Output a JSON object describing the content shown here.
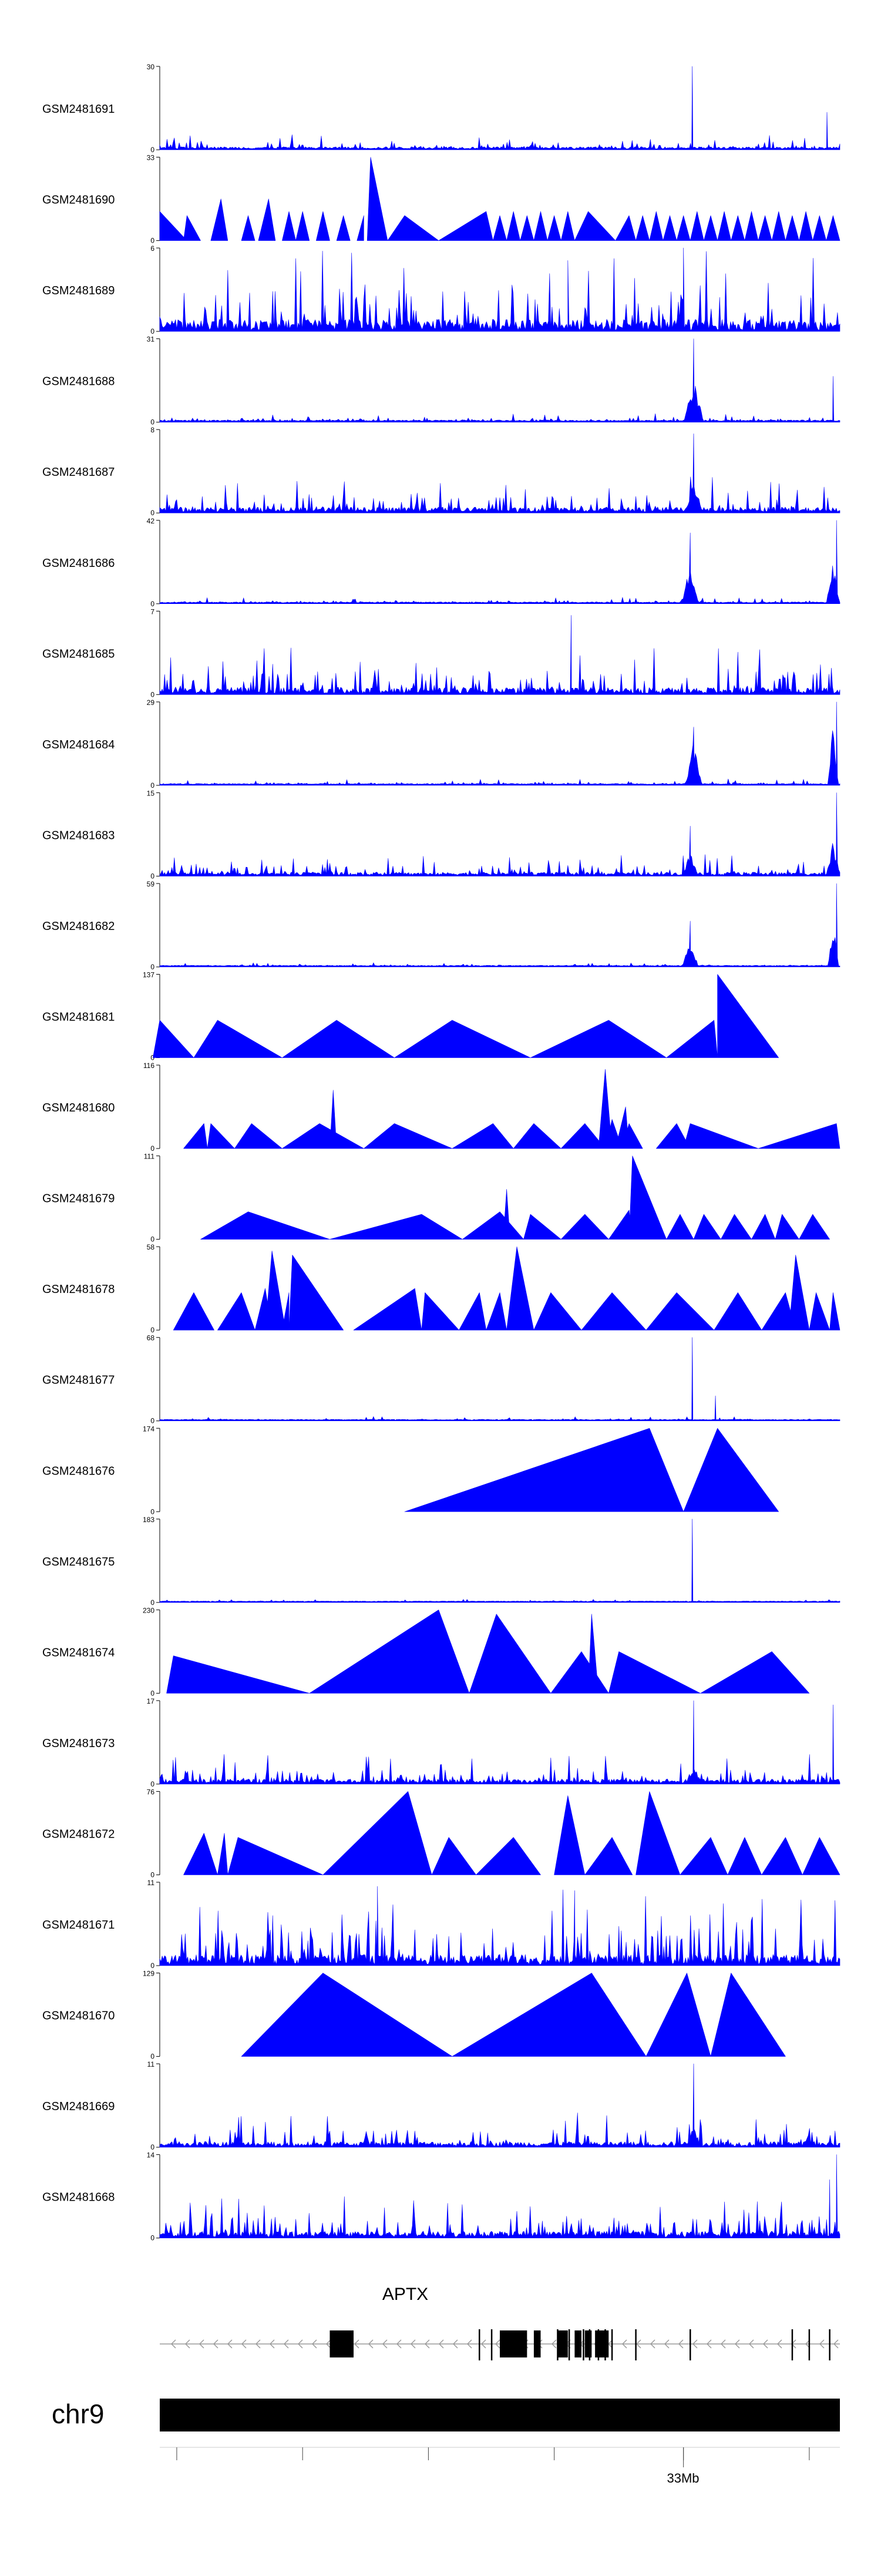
{
  "colors": {
    "signal": "#0000ff",
    "axis": "#000000",
    "gene": "#000000",
    "intron": "#9a9a9a",
    "chrom": "#000000"
  },
  "chart_data": {
    "type": "area",
    "gene_name": "APTX",
    "chromosome": "chr9",
    "genome_tick_label": "33Mb",
    "tracks": [
      {
        "name": "GSM2481691",
        "ymax": 30,
        "kind": "noise",
        "seed": 11,
        "base": 0.07,
        "spikes": [
          [
            0.783,
            1.0
          ],
          [
            0.981,
            0.45
          ]
        ],
        "hotspots": []
      },
      {
        "name": "GSM2481690",
        "ymax": 33,
        "kind": "peaks",
        "seed": 12,
        "peaks": [
          [
            0.0,
            0.35,
            0.0,
            0.04
          ],
          [
            0.04,
            0.3,
            0.035,
            0.06
          ],
          [
            0.09,
            0.5,
            0.075,
            0.1
          ],
          [
            0.13,
            0.3,
            0.12,
            0.14
          ],
          [
            0.16,
            0.5,
            0.145,
            0.17
          ],
          [
            0.19,
            0.35,
            0.18,
            0.2
          ],
          [
            0.21,
            0.35,
            0.2,
            0.22
          ],
          [
            0.24,
            0.35,
            0.23,
            0.25
          ],
          [
            0.27,
            0.3,
            0.26,
            0.28
          ],
          [
            0.3,
            0.3,
            0.29,
            0.3
          ],
          [
            0.31,
            1.0,
            0.305,
            0.335
          ],
          [
            0.36,
            0.3,
            0.335,
            0.41
          ],
          [
            0.48,
            0.35,
            0.41,
            0.49
          ],
          [
            0.5,
            0.3,
            0.49,
            0.51
          ],
          [
            0.52,
            0.35,
            0.51,
            0.53
          ],
          [
            0.54,
            0.3,
            0.53,
            0.55
          ],
          [
            0.56,
            0.35,
            0.55,
            0.57
          ],
          [
            0.58,
            0.3,
            0.57,
            0.59
          ],
          [
            0.6,
            0.35,
            0.59,
            0.61
          ],
          [
            0.63,
            0.35,
            0.61,
            0.67
          ],
          [
            0.69,
            0.3,
            0.67,
            0.7
          ],
          [
            0.71,
            0.3,
            0.7,
            0.72
          ],
          [
            0.73,
            0.35,
            0.72,
            0.74
          ],
          [
            0.75,
            0.3,
            0.74,
            0.76
          ],
          [
            0.77,
            0.3,
            0.76,
            0.78
          ],
          [
            0.79,
            0.35,
            0.78,
            0.8
          ],
          [
            0.81,
            0.3,
            0.8,
            0.82
          ],
          [
            0.83,
            0.35,
            0.82,
            0.84
          ],
          [
            0.85,
            0.3,
            0.84,
            0.86
          ],
          [
            0.87,
            0.35,
            0.86,
            0.88
          ],
          [
            0.89,
            0.3,
            0.88,
            0.9
          ],
          [
            0.91,
            0.35,
            0.9,
            0.92
          ],
          [
            0.93,
            0.3,
            0.92,
            0.94
          ],
          [
            0.95,
            0.35,
            0.94,
            0.96
          ],
          [
            0.97,
            0.3,
            0.96,
            0.98
          ],
          [
            0.99,
            0.3,
            0.98,
            1.0
          ]
        ]
      },
      {
        "name": "GSM2481689",
        "ymax": 6,
        "kind": "noise",
        "seed": 13,
        "base": 0.38,
        "spikes": [
          [
            0.77,
            1.0
          ],
          [
            0.6,
            0.85
          ]
        ],
        "hotspots": []
      },
      {
        "name": "GSM2481688",
        "ymax": 31,
        "kind": "noise",
        "seed": 14,
        "base": 0.04,
        "spikes": [
          [
            0.785,
            1.0
          ],
          [
            0.99,
            0.55
          ]
        ],
        "hotspots": [
          [
            0.785,
            0.015,
            0.55
          ]
        ]
      },
      {
        "name": "GSM2481687",
        "ymax": 8,
        "kind": "noise",
        "seed": 15,
        "base": 0.17,
        "spikes": [
          [
            0.785,
            0.95
          ]
        ],
        "hotspots": [
          [
            0.785,
            0.015,
            0.35
          ]
        ]
      },
      {
        "name": "GSM2481686",
        "ymax": 42,
        "kind": "noise",
        "seed": 16,
        "base": 0.03,
        "spikes": [
          [
            0.78,
            0.85
          ],
          [
            0.995,
            1.0
          ]
        ],
        "hotspots": [
          [
            0.78,
            0.012,
            0.55
          ],
          [
            0.99,
            0.01,
            0.55
          ]
        ]
      },
      {
        "name": "GSM2481685",
        "ymax": 7,
        "kind": "noise",
        "seed": 17,
        "base": 0.22,
        "spikes": [
          [
            0.605,
            0.95
          ]
        ],
        "hotspots": []
      },
      {
        "name": "GSM2481684",
        "ymax": 29,
        "kind": "noise",
        "seed": 18,
        "base": 0.03,
        "spikes": [
          [
            0.785,
            0.7
          ],
          [
            0.995,
            1.0
          ]
        ],
        "hotspots": [
          [
            0.785,
            0.012,
            0.55
          ],
          [
            0.99,
            0.008,
            0.75
          ]
        ]
      },
      {
        "name": "GSM2481683",
        "ymax": 15,
        "kind": "noise",
        "seed": 19,
        "base": 0.1,
        "spikes": [
          [
            0.78,
            0.6
          ],
          [
            0.995,
            1.0
          ]
        ],
        "hotspots": [
          [
            0.78,
            0.012,
            0.3
          ],
          [
            0.99,
            0.01,
            0.45
          ]
        ]
      },
      {
        "name": "GSM2481682",
        "ymax": 59,
        "kind": "noise",
        "seed": 20,
        "base": 0.02,
        "spikes": [
          [
            0.78,
            0.55
          ],
          [
            0.995,
            1.0
          ]
        ],
        "hotspots": [
          [
            0.78,
            0.012,
            0.35
          ],
          [
            0.99,
            0.008,
            0.6
          ]
        ]
      },
      {
        "name": "GSM2481681",
        "ymax": 137,
        "kind": "peaks",
        "seed": 21,
        "peaks": [
          [
            0.0,
            0.45,
            -0.01,
            0.05
          ],
          [
            0.085,
            0.45,
            0.05,
            0.18
          ],
          [
            0.26,
            0.45,
            0.18,
            0.345
          ],
          [
            0.43,
            0.45,
            0.345,
            0.545
          ],
          [
            0.66,
            0.45,
            0.545,
            0.745
          ],
          [
            0.815,
            0.45,
            0.745,
            0.82
          ],
          [
            0.82,
            1.0,
            0.82,
            0.91
          ]
        ]
      },
      {
        "name": "GSM2481680",
        "ymax": 116,
        "kind": "peaks",
        "seed": 22,
        "peaks": [
          [
            0.065,
            0.3,
            0.035,
            0.07
          ],
          [
            0.075,
            0.3,
            0.07,
            0.11
          ],
          [
            0.135,
            0.3,
            0.11,
            0.18
          ],
          [
            0.235,
            0.3,
            0.18,
            0.3
          ],
          [
            0.255,
            0.7,
            0.25,
            0.26
          ],
          [
            0.345,
            0.3,
            0.3,
            0.43
          ],
          [
            0.49,
            0.3,
            0.43,
            0.52
          ],
          [
            0.55,
            0.3,
            0.52,
            0.59
          ],
          [
            0.625,
            0.3,
            0.59,
            0.655
          ],
          [
            0.655,
            0.95,
            0.645,
            0.665
          ],
          [
            0.665,
            0.35,
            0.655,
            0.68
          ],
          [
            0.685,
            0.5,
            0.67,
            0.69
          ],
          [
            0.69,
            0.3,
            0.68,
            0.71
          ],
          [
            0.76,
            0.3,
            0.73,
            0.78
          ],
          [
            0.78,
            0.3,
            0.77,
            0.88
          ],
          [
            0.995,
            0.3,
            0.88,
            1.0
          ]
        ]
      },
      {
        "name": "GSM2481679",
        "ymax": 111,
        "kind": "peaks",
        "seed": 23,
        "peaks": [
          [
            0.13,
            0.33,
            0.06,
            0.25
          ],
          [
            0.385,
            0.3,
            0.25,
            0.445
          ],
          [
            0.5,
            0.33,
            0.445,
            0.535
          ],
          [
            0.51,
            0.6,
            0.505,
            0.515
          ],
          [
            0.545,
            0.3,
            0.535,
            0.59
          ],
          [
            0.625,
            0.3,
            0.59,
            0.66
          ],
          [
            0.69,
            0.35,
            0.66,
            0.695
          ],
          [
            0.695,
            1.0,
            0.69,
            0.745
          ],
          [
            0.765,
            0.3,
            0.745,
            0.785
          ],
          [
            0.8,
            0.3,
            0.785,
            0.825
          ],
          [
            0.845,
            0.3,
            0.825,
            0.87
          ],
          [
            0.89,
            0.3,
            0.87,
            0.905
          ],
          [
            0.915,
            0.3,
            0.905,
            0.94
          ],
          [
            0.96,
            0.3,
            0.94,
            0.985
          ]
        ]
      },
      {
        "name": "GSM2481678",
        "ymax": 58,
        "kind": "peaks",
        "seed": 24,
        "peaks": [
          [
            0.05,
            0.45,
            0.02,
            0.08
          ],
          [
            0.12,
            0.45,
            0.085,
            0.14
          ],
          [
            0.155,
            0.5,
            0.14,
            0.165
          ],
          [
            0.165,
            0.95,
            0.155,
            0.185
          ],
          [
            0.19,
            0.45,
            0.18,
            0.19
          ],
          [
            0.195,
            0.9,
            0.19,
            0.27
          ],
          [
            0.375,
            0.5,
            0.285,
            0.385
          ],
          [
            0.39,
            0.45,
            0.385,
            0.44
          ],
          [
            0.47,
            0.45,
            0.44,
            0.48
          ],
          [
            0.5,
            0.45,
            0.48,
            0.51
          ],
          [
            0.525,
            1.0,
            0.51,
            0.55
          ],
          [
            0.575,
            0.45,
            0.55,
            0.62
          ],
          [
            0.665,
            0.45,
            0.62,
            0.715
          ],
          [
            0.76,
            0.45,
            0.715,
            0.815
          ],
          [
            0.85,
            0.45,
            0.815,
            0.885
          ],
          [
            0.92,
            0.45,
            0.885,
            0.935
          ],
          [
            0.935,
            0.9,
            0.925,
            0.955
          ],
          [
            0.965,
            0.45,
            0.955,
            0.985
          ],
          [
            0.99,
            0.45,
            0.985,
            1.0
          ]
        ]
      },
      {
        "name": "GSM2481677",
        "ymax": 68,
        "kind": "noise",
        "seed": 25,
        "base": 0.02,
        "spikes": [
          [
            0.783,
            1.0
          ],
          [
            0.817,
            0.3
          ]
        ],
        "hotspots": []
      },
      {
        "name": "GSM2481676",
        "ymax": 174,
        "kind": "peaks",
        "seed": 26,
        "peaks": [
          [
            0.72,
            1.0,
            0.36,
            0.77
          ],
          [
            0.82,
            1.0,
            0.77,
            0.91
          ]
        ]
      },
      {
        "name": "GSM2481675",
        "ymax": 183,
        "kind": "noise",
        "seed": 27,
        "base": 0.015,
        "spikes": [
          [
            0.783,
            1.0
          ]
        ],
        "hotspots": []
      },
      {
        "name": "GSM2481674",
        "ymax": 230,
        "kind": "peaks",
        "seed": 28,
        "peaks": [
          [
            0.02,
            0.45,
            0.01,
            0.22
          ],
          [
            0.41,
            1.0,
            0.22,
            0.455
          ],
          [
            0.495,
            0.95,
            0.455,
            0.575
          ],
          [
            0.62,
            0.5,
            0.575,
            0.66
          ],
          [
            0.635,
            0.95,
            0.63,
            0.645
          ],
          [
            0.675,
            0.5,
            0.66,
            0.795
          ],
          [
            0.9,
            0.5,
            0.795,
            0.955
          ]
        ]
      },
      {
        "name": "GSM2481673",
        "ymax": 17,
        "kind": "noise",
        "seed": 29,
        "base": 0.14,
        "spikes": [
          [
            0.785,
            1.0
          ],
          [
            0.99,
            0.95
          ]
        ],
        "hotspots": [
          [
            0.785,
            0.012,
            0.25
          ]
        ]
      },
      {
        "name": "GSM2481672",
        "ymax": 76,
        "kind": "peaks",
        "seed": 30,
        "peaks": [
          [
            0.065,
            0.5,
            0.035,
            0.085
          ],
          [
            0.095,
            0.5,
            0.085,
            0.1
          ],
          [
            0.115,
            0.45,
            0.1,
            0.24
          ],
          [
            0.365,
            1.0,
            0.24,
            0.4
          ],
          [
            0.425,
            0.45,
            0.4,
            0.465
          ],
          [
            0.52,
            0.45,
            0.465,
            0.56
          ],
          [
            0.6,
            0.95,
            0.58,
            0.625
          ],
          [
            0.665,
            0.45,
            0.625,
            0.695
          ],
          [
            0.72,
            1.0,
            0.7,
            0.765
          ],
          [
            0.81,
            0.45,
            0.765,
            0.835
          ],
          [
            0.86,
            0.45,
            0.835,
            0.885
          ],
          [
            0.92,
            0.45,
            0.885,
            0.945
          ],
          [
            0.97,
            0.45,
            0.945,
            1.0
          ]
        ]
      },
      {
        "name": "GSM2481671",
        "ymax": 11,
        "kind": "noise",
        "seed": 31,
        "base": 0.35,
        "spikes": [
          [
            0.32,
            0.95
          ],
          [
            0.61,
            0.9
          ]
        ],
        "hotspots": []
      },
      {
        "name": "GSM2481670",
        "ymax": 129,
        "kind": "peaks",
        "seed": 32,
        "peaks": [
          [
            0.24,
            1.0,
            0.12,
            0.43
          ],
          [
            0.635,
            1.0,
            0.43,
            0.715
          ],
          [
            0.775,
            1.0,
            0.715,
            0.81
          ],
          [
            0.84,
            1.0,
            0.81,
            0.92
          ]
        ]
      },
      {
        "name": "GSM2481669",
        "ymax": 11,
        "kind": "noise",
        "seed": 33,
        "base": 0.16,
        "spikes": [
          [
            0.785,
            1.0
          ]
        ],
        "hotspots": [
          [
            0.785,
            0.012,
            0.25
          ]
        ]
      },
      {
        "name": "GSM2481668",
        "ymax": 14,
        "kind": "noise",
        "seed": 34,
        "base": 0.2,
        "spikes": [
          [
            0.995,
            1.0
          ],
          [
            0.985,
            0.7
          ]
        ],
        "hotspots": []
      }
    ],
    "gene_model": {
      "blocks": [
        [
          0.25,
          0.285
        ],
        [
          0.5,
          0.54
        ],
        [
          0.55,
          0.56
        ],
        [
          0.585,
          0.6
        ],
        [
          0.61,
          0.62
        ],
        [
          0.625,
          0.635
        ],
        [
          0.64,
          0.66
        ]
      ],
      "ticks": [
        0.47,
        0.488,
        0.585,
        0.602,
        0.623,
        0.632,
        0.645,
        0.655,
        0.665,
        0.7,
        0.78,
        0.93,
        0.955,
        0.985
      ]
    },
    "axis_ticks": [
      0.025,
      0.21,
      0.395,
      0.58,
      0.77,
      0.955
    ]
  }
}
